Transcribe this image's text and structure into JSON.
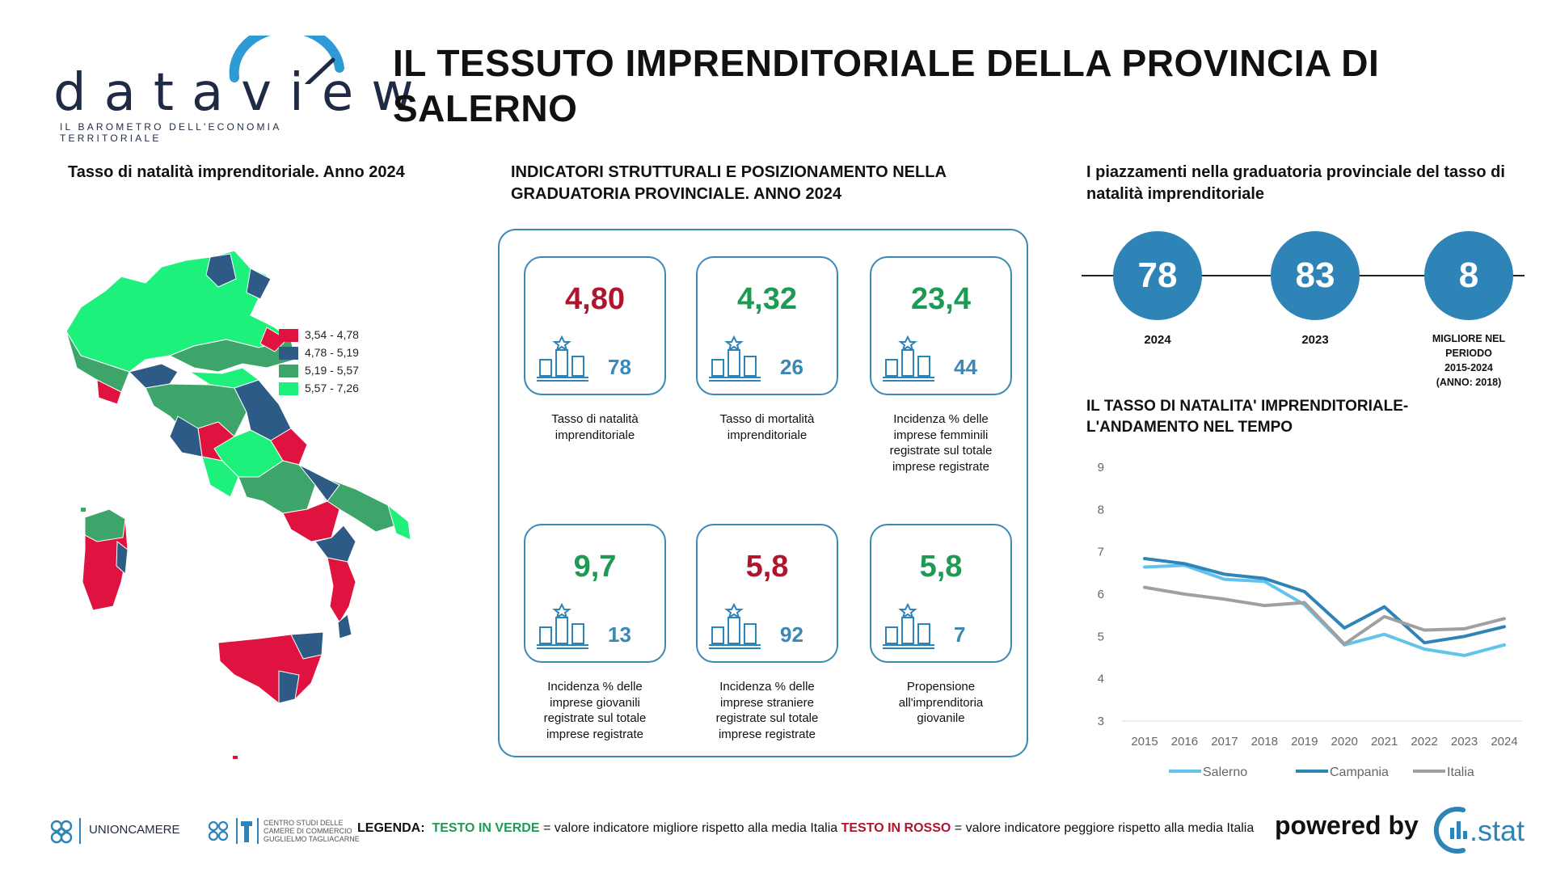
{
  "logo": {
    "word": "dataview",
    "subtitle": "IL BAROMETRO DELL'ECONOMIA TERRITORIALE"
  },
  "header": {
    "title_line1": "IL TESSUTO IMPRENDITORIALE DELLA PROVINCIA DI",
    "title_line2": "SALERNO"
  },
  "map_section": {
    "title": "Tasso di natalità imprenditoriale. Anno 2024",
    "legend": [
      {
        "label": "3,54 - 4,78",
        "color": "#e0123f"
      },
      {
        "label": "4,78 - 5,19",
        "color": "#2e5b85"
      },
      {
        "label": "5,19 - 5,57",
        "color": "#3ea56a"
      },
      {
        "label": "5,57 - 7,26",
        "color": "#1ef07c"
      }
    ]
  },
  "indicators": {
    "title_line1": "INDICATORI STRUTTURALI E POSIZIONAMENTO NELLA",
    "title_line2": "GRADUATORIA PROVINCIALE. ANNO 2024",
    "cards": [
      {
        "value": "4,80",
        "rank": "78",
        "tone": "red",
        "caption": [
          "Tasso di natalità",
          "imprenditoriale"
        ]
      },
      {
        "value": "4,32",
        "rank": "26",
        "tone": "green",
        "caption": [
          "Tasso di mortalità",
          "imprenditoriale"
        ]
      },
      {
        "value": "23,4",
        "rank": "44",
        "tone": "green",
        "caption": [
          "Incidenza % delle",
          "imprese femminili",
          "registrate sul totale",
          "imprese registrate"
        ]
      },
      {
        "value": "9,7",
        "rank": "13",
        "tone": "green",
        "caption": [
          "Incidenza % delle",
          "imprese giovanili",
          "registrate sul totale",
          "imprese registrate"
        ]
      },
      {
        "value": "5,8",
        "rank": "92",
        "tone": "red",
        "caption": [
          "Incidenza % delle",
          "imprese straniere",
          "registrate sul totale",
          "imprese registrate"
        ]
      },
      {
        "value": "5,8",
        "rank": "7",
        "tone": "green",
        "caption": [
          "Propensione",
          "all'imprenditoria",
          "giovanile"
        ]
      }
    ]
  },
  "rankings": {
    "title_line1": "I piazzamenti nella graduatoria provinciale del tasso di",
    "title_line2": "natalità imprenditoriale",
    "items": [
      {
        "value": "78",
        "label": [
          "2024"
        ]
      },
      {
        "value": "83",
        "label": [
          "2023"
        ]
      },
      {
        "value": "8",
        "label": [
          "MIGLIORE NEL",
          "PERIODO",
          "2015-2024",
          "(ANNO: 2018)"
        ]
      }
    ]
  },
  "chart_data": {
    "type": "line",
    "title": "IL TASSO DI NATALITA' IMPRENDITORIALE- L'ANDAMENTO NEL TEMPO",
    "title_line1": "IL TASSO DI NATALITA' IMPRENDITORIALE-",
    "title_line2": "L'ANDAMENTO NEL TEMPO",
    "x": [
      "2015",
      "2016",
      "2017",
      "2018",
      "2019",
      "2020",
      "2021",
      "2022",
      "2023",
      "2024"
    ],
    "ylim": [
      3,
      9
    ],
    "yticks": [
      "3",
      "4",
      "5",
      "6",
      "7",
      "8",
      "9"
    ],
    "grid": false,
    "legend_position": "bottom",
    "series": [
      {
        "name": "Salerno",
        "color": "#62c3ec",
        "values": [
          6.64,
          6.68,
          6.35,
          6.3,
          5.75,
          4.8,
          5.05,
          4.7,
          4.55,
          4.8
        ]
      },
      {
        "name": "Campania",
        "color": "#2f84b7",
        "values": [
          6.84,
          6.72,
          6.47,
          6.37,
          6.06,
          5.2,
          5.7,
          4.85,
          5.0,
          5.23
        ]
      },
      {
        "name": "Italia",
        "color": "#a0a0a0",
        "values": [
          6.16,
          6.0,
          5.88,
          5.73,
          5.8,
          4.82,
          5.47,
          5.15,
          5.18,
          5.42
        ]
      }
    ]
  },
  "footer": {
    "unioncamere": "UNIONCAMERE",
    "tagliacarne": [
      "CENTRO STUDI DELLE",
      "CAMERE DI COMMERCIO",
      "GUGLIELMO TAGLIACARNE"
    ],
    "legend_label": "LEGENDA:",
    "green_text": "TESTO IN VERDE",
    "green_desc": "= valore indicatore migliore rispetto alla media Italia",
    "red_text": "TESTO IN ROSSO",
    "red_desc": "= valore indicatore peggiore rispetto alla media Italia",
    "powered_by": "powered by",
    "stat_logo": ".stat"
  }
}
